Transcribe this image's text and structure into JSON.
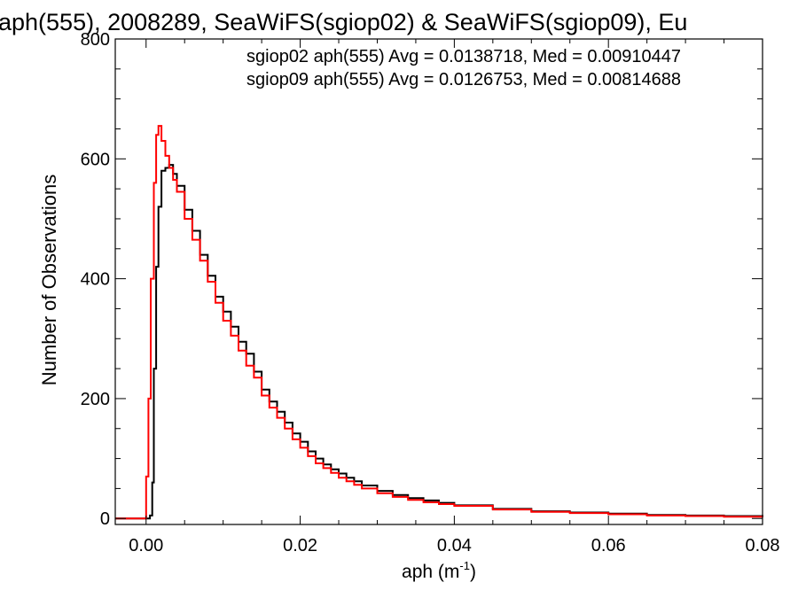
{
  "chart_data": {
    "type": "line",
    "title": "aph(555), 2008289, SeaWiFS(sgiop02) & SeaWiFS(sgiop09), Eu",
    "xlabel": "aph (m",
    "xlabel_sup": "-1",
    "xlabel_close": ")",
    "ylabel": "Number of Observations",
    "xlim": [
      -0.004,
      0.08
    ],
    "ylim": [
      -10,
      800
    ],
    "xticks": [
      0.0,
      0.02,
      0.04,
      0.06,
      0.08
    ],
    "xtick_labels": [
      "0.00",
      "0.02",
      "0.04",
      "0.06",
      "0.08"
    ],
    "yticks": [
      0,
      200,
      400,
      600,
      800
    ],
    "ytick_labels": [
      "0",
      "200",
      "400",
      "600",
      "800"
    ],
    "step": "histogram",
    "grid": false,
    "legend_position": "top-right",
    "annotations": [
      {
        "text": "sgiop02 aph(555) Avg = 0.0138718, Med = 0.00910447",
        "color": "#000000"
      },
      {
        "text": "sgiop09 aph(555) Avg = 0.0126753, Med = 0.00814688",
        "color": "#ff0000"
      }
    ],
    "series": [
      {
        "color": "#000000",
        "x": [
          -0.004,
          0.0,
          0.0005,
          0.0008,
          0.001,
          0.0013,
          0.0016,
          0.002,
          0.0025,
          0.003,
          0.0035,
          0.004,
          0.005,
          0.006,
          0.007,
          0.008,
          0.009,
          0.01,
          0.011,
          0.012,
          0.013,
          0.014,
          0.015,
          0.016,
          0.017,
          0.018,
          0.019,
          0.02,
          0.021,
          0.022,
          0.023,
          0.024,
          0.025,
          0.026,
          0.027,
          0.028,
          0.03,
          0.032,
          0.034,
          0.036,
          0.038,
          0.04,
          0.045,
          0.05,
          0.055,
          0.06,
          0.065,
          0.07,
          0.075,
          0.08
        ],
        "y": [
          0,
          0,
          5,
          60,
          250,
          420,
          520,
          580,
          585,
          590,
          575,
          555,
          515,
          480,
          440,
          405,
          370,
          345,
          320,
          295,
          275,
          245,
          215,
          195,
          178,
          160,
          142,
          128,
          112,
          100,
          90,
          82,
          75,
          68,
          62,
          55,
          46,
          39,
          34,
          30,
          26,
          22,
          16,
          12,
          10,
          8,
          6,
          5,
          4,
          3
        ]
      },
      {
        "color": "#ff0000",
        "x": [
          -0.004,
          -0.0005,
          0.0,
          0.0003,
          0.0006,
          0.001,
          0.0013,
          0.0016,
          0.002,
          0.0025,
          0.003,
          0.0035,
          0.004,
          0.005,
          0.006,
          0.007,
          0.008,
          0.009,
          0.01,
          0.011,
          0.012,
          0.013,
          0.014,
          0.015,
          0.016,
          0.017,
          0.018,
          0.019,
          0.02,
          0.021,
          0.022,
          0.023,
          0.024,
          0.025,
          0.026,
          0.027,
          0.028,
          0.03,
          0.032,
          0.034,
          0.036,
          0.038,
          0.04,
          0.045,
          0.05,
          0.055,
          0.06,
          0.065,
          0.07,
          0.075,
          0.08
        ],
        "y": [
          0,
          0,
          70,
          200,
          400,
          560,
          640,
          655,
          630,
          605,
          585,
          565,
          545,
          500,
          465,
          430,
          395,
          360,
          330,
          305,
          280,
          255,
          235,
          205,
          185,
          168,
          150,
          132,
          118,
          104,
          92,
          84,
          76,
          68,
          62,
          56,
          50,
          42,
          36,
          31,
          27,
          24,
          21,
          15,
          11,
          9,
          7,
          5,
          4,
          3,
          2
        ]
      }
    ]
  }
}
